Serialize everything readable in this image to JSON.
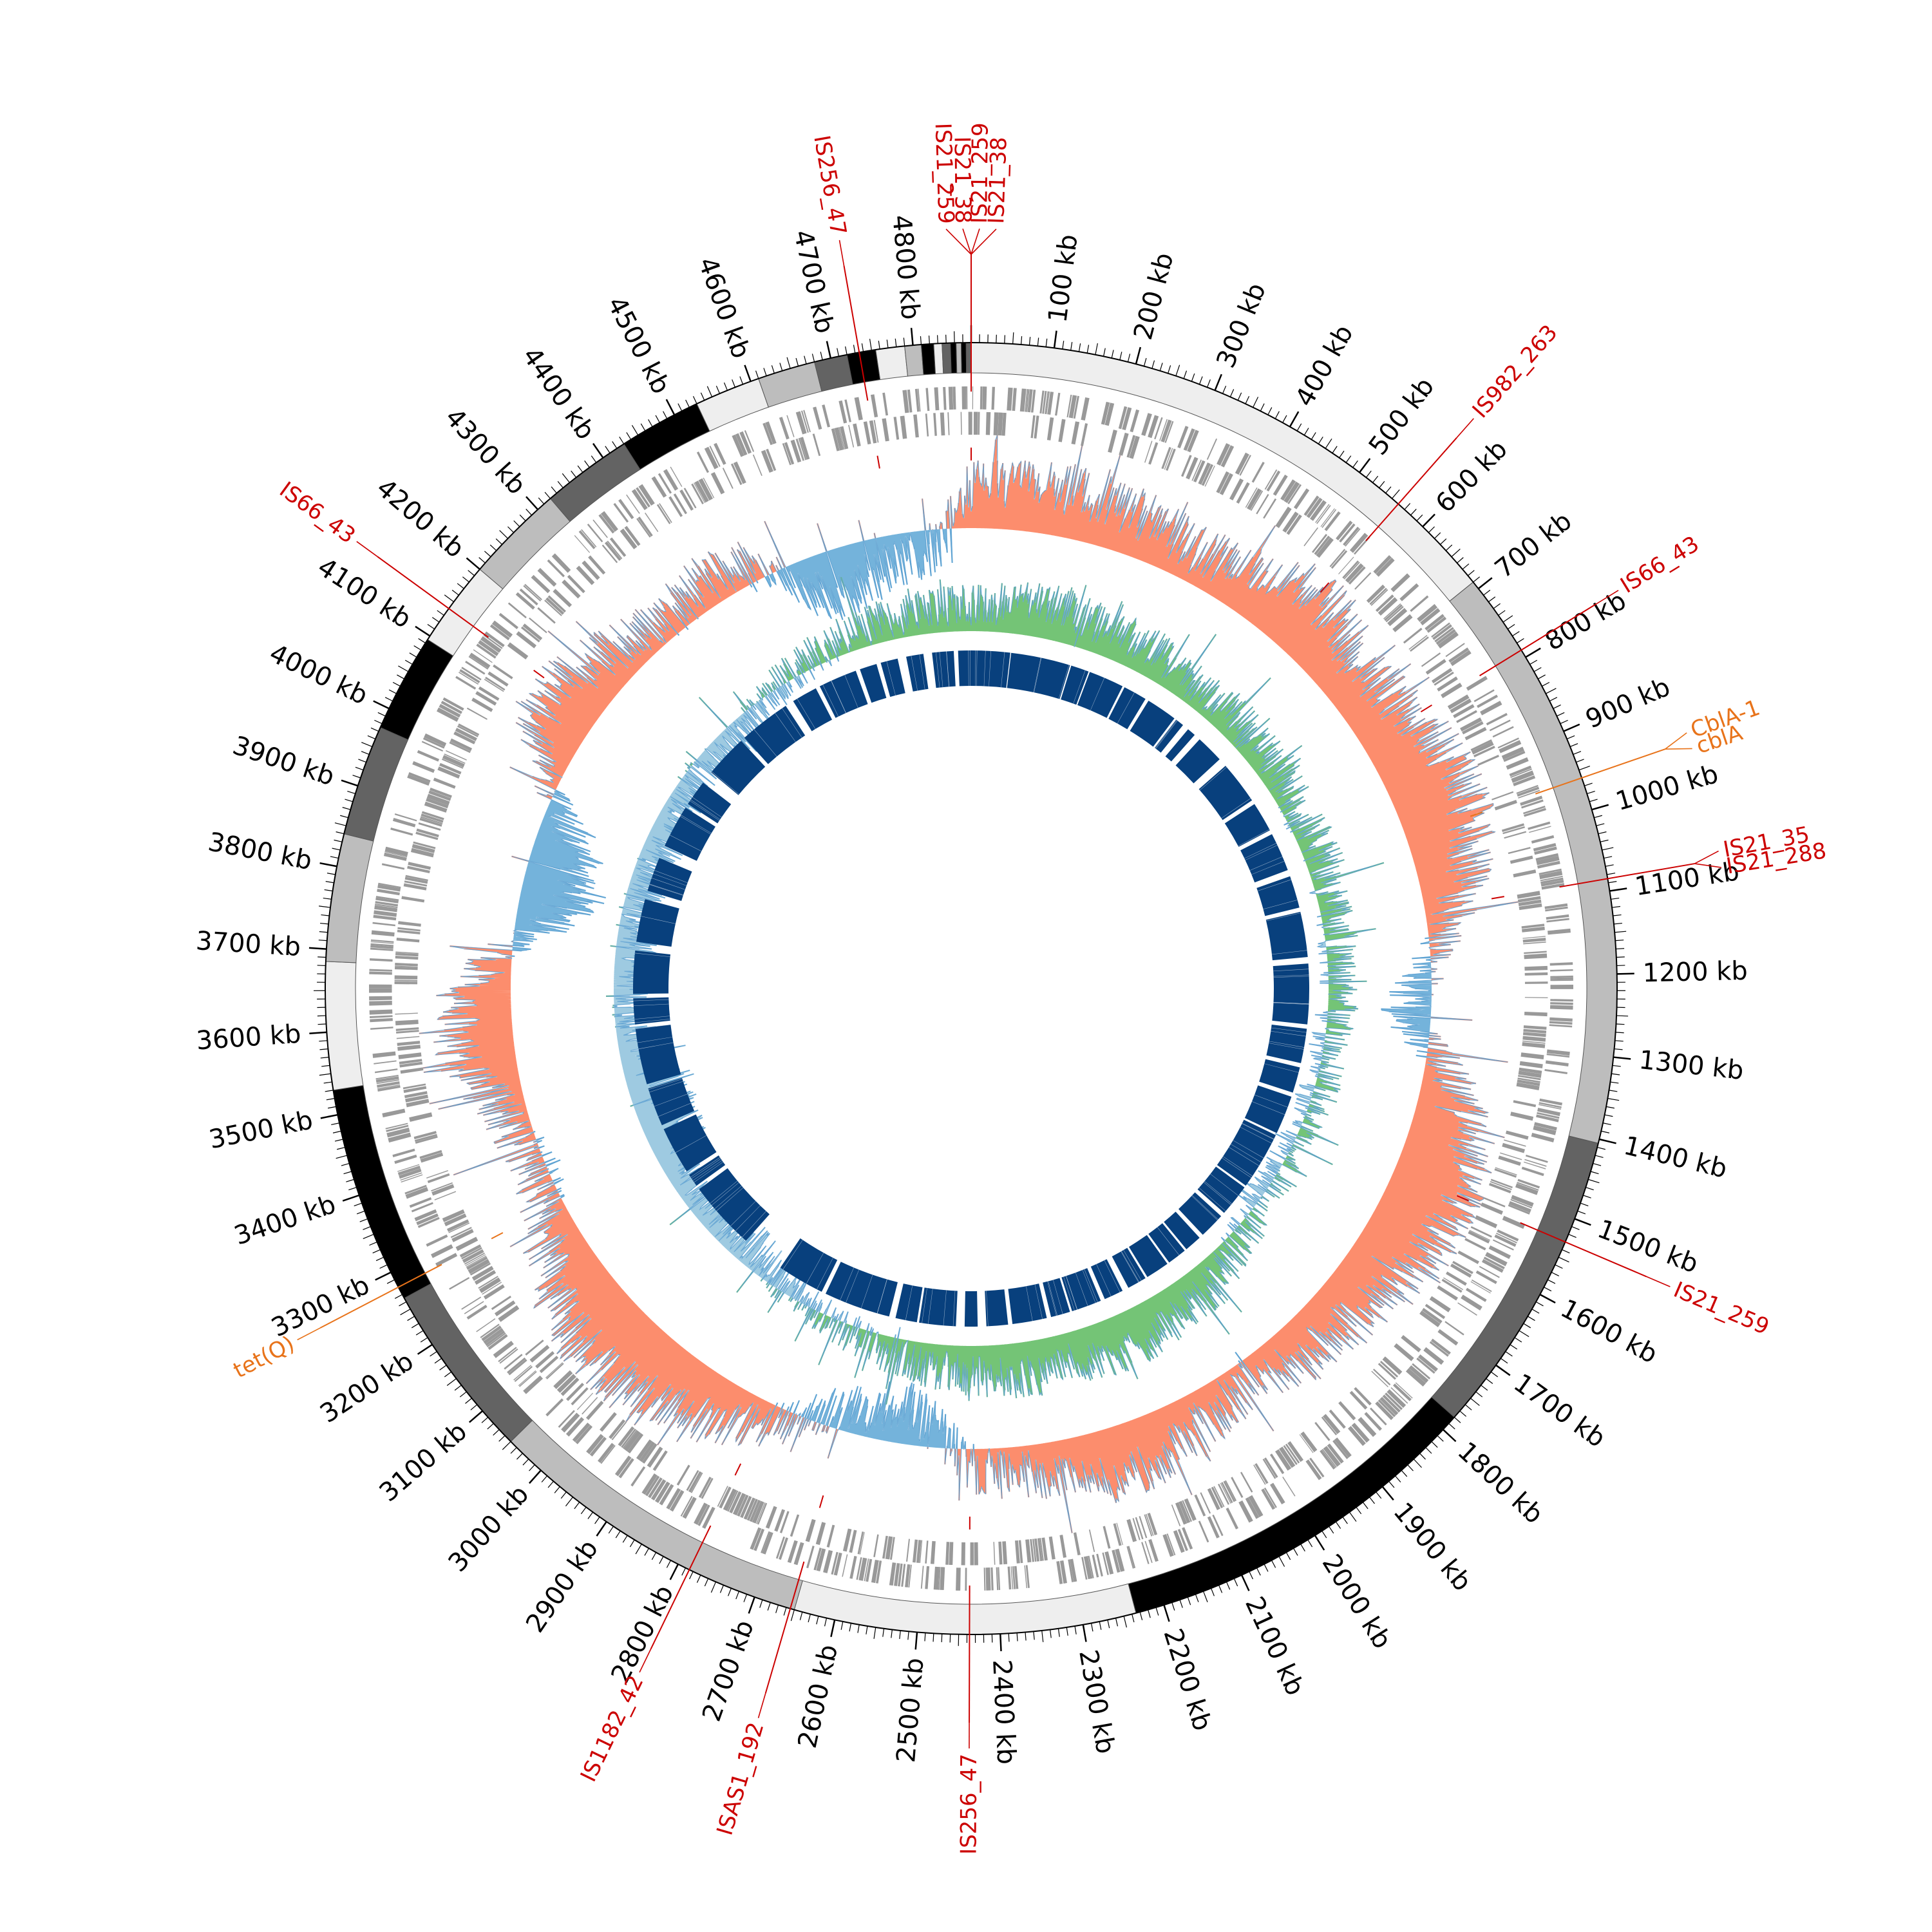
{
  "genome_map": {
    "title": "",
    "genome_length_kb": 4870,
    "tick_labels": [
      {
        "kb": 100,
        "label": "100 kb"
      },
      {
        "kb": 200,
        "label": "200 kb"
      },
      {
        "kb": 300,
        "label": "300 kb"
      },
      {
        "kb": 400,
        "label": "400 kb"
      },
      {
        "kb": 500,
        "label": "500 kb"
      },
      {
        "kb": 600,
        "label": "600 kb"
      },
      {
        "kb": 700,
        "label": "700 kb"
      },
      {
        "kb": 800,
        "label": "800 kb"
      },
      {
        "kb": 900,
        "label": "900 kb"
      },
      {
        "kb": 1000,
        "label": "1000 kb"
      },
      {
        "kb": 1100,
        "label": "1100 kb"
      },
      {
        "kb": 1200,
        "label": "1200 kb"
      },
      {
        "kb": 1300,
        "label": "1300 kb"
      },
      {
        "kb": 1400,
        "label": "1400 kb"
      },
      {
        "kb": 1500,
        "label": "1500 kb"
      },
      {
        "kb": 1600,
        "label": "1600 kb"
      },
      {
        "kb": 1700,
        "label": "1700 kb"
      },
      {
        "kb": 1800,
        "label": "1800 kb"
      },
      {
        "kb": 1900,
        "label": "1900 kb"
      },
      {
        "kb": 2000,
        "label": "2000 kb"
      },
      {
        "kb": 2100,
        "label": "2100 kb"
      },
      {
        "kb": 2200,
        "label": "2200 kb"
      },
      {
        "kb": 2300,
        "label": "2300 kb"
      },
      {
        "kb": 2400,
        "label": "2400 kb"
      },
      {
        "kb": 2500,
        "label": "2500 kb"
      },
      {
        "kb": 2600,
        "label": "2600 kb"
      },
      {
        "kb": 2700,
        "label": "2700 kb"
      },
      {
        "kb": 2800,
        "label": "2800 kb"
      },
      {
        "kb": 2900,
        "label": "2900 kb"
      },
      {
        "kb": 3000,
        "label": "3000 kb"
      },
      {
        "kb": 3100,
        "label": "3100 kb"
      },
      {
        "kb": 3200,
        "label": "3200 kb"
      },
      {
        "kb": 3300,
        "label": "3300 kb"
      },
      {
        "kb": 3400,
        "label": "3400 kb"
      },
      {
        "kb": 3500,
        "label": "3500 kb"
      },
      {
        "kb": 3600,
        "label": "3600 kb"
      },
      {
        "kb": 3700,
        "label": "3700 kb"
      },
      {
        "kb": 3800,
        "label": "3800 kb"
      },
      {
        "kb": 3900,
        "label": "3900 kb"
      },
      {
        "kb": 4000,
        "label": "4000 kb"
      },
      {
        "kb": 4100,
        "label": "4100 kb"
      },
      {
        "kb": 4200,
        "label": "4200 kb"
      },
      {
        "kb": 4300,
        "label": "4300 kb"
      },
      {
        "kb": 4400,
        "label": "4400 kb"
      },
      {
        "kb": 4500,
        "label": "4500 kb"
      },
      {
        "kb": 4600,
        "label": "4600 kb"
      },
      {
        "kb": 4700,
        "label": "4700 kb"
      },
      {
        "kb": 4800,
        "label": "4800 kb"
      }
    ],
    "contigs": [
      {
        "start": 0,
        "end": 690,
        "shade": "#eeeeee"
      },
      {
        "start": 690,
        "end": 1405,
        "shade": "#bdbdbd"
      },
      {
        "start": 1405,
        "end": 1780,
        "shade": "#636363"
      },
      {
        "start": 1780,
        "end": 2235,
        "shade": "#000000"
      },
      {
        "start": 2235,
        "end": 2650,
        "shade": "#eeeeee"
      },
      {
        "start": 2650,
        "end": 3050,
        "shade": "#bdbdbd"
      },
      {
        "start": 3050,
        "end": 3265,
        "shade": "#636363"
      },
      {
        "start": 3265,
        "end": 3530,
        "shade": "#000000"
      },
      {
        "start": 3530,
        "end": 3685,
        "shade": "#eeeeee"
      },
      {
        "start": 3685,
        "end": 3840,
        "shade": "#bdbdbd"
      },
      {
        "start": 3840,
        "end": 3975,
        "shade": "#636363"
      },
      {
        "start": 3975,
        "end": 4095,
        "shade": "#000000"
      },
      {
        "start": 4095,
        "end": 4200,
        "shade": "#eeeeee"
      },
      {
        "start": 4200,
        "end": 4320,
        "shade": "#bdbdbd"
      },
      {
        "start": 4320,
        "end": 4430,
        "shade": "#636363"
      },
      {
        "start": 4430,
        "end": 4530,
        "shade": "#000000"
      },
      {
        "start": 4530,
        "end": 4610,
        "shade": "#eeeeee"
      },
      {
        "start": 4610,
        "end": 4680,
        "shade": "#bdbdbd"
      },
      {
        "start": 4680,
        "end": 4720,
        "shade": "#636363"
      },
      {
        "start": 4720,
        "end": 4755,
        "shade": "#000000"
      },
      {
        "start": 4755,
        "end": 4790,
        "shade": "#eeeeee"
      },
      {
        "start": 4790,
        "end": 4810,
        "shade": "#bdbdbd"
      },
      {
        "start": 4810,
        "end": 4825,
        "shade": "#000000"
      },
      {
        "start": 4825,
        "end": 4835,
        "shade": "#eeeeee"
      },
      {
        "start": 4835,
        "end": 4845,
        "shade": "#636363"
      },
      {
        "start": 4845,
        "end": 4852,
        "shade": "#000000"
      },
      {
        "start": 4852,
        "end": 4858,
        "shade": "#bdbdbd"
      },
      {
        "start": 4858,
        "end": 4864,
        "shade": "#000000"
      },
      {
        "start": 4864,
        "end": 4870,
        "shade": "#636363"
      }
    ],
    "mobile_elements": [
      {
        "kb": 4870,
        "label": "IS21_259",
        "line": "#cc0000"
      },
      {
        "kb": 4870,
        "label": "IS21_38",
        "line": "#cc0000"
      },
      {
        "kb": 4870,
        "label": "IS21_259",
        "line": "#cc0000"
      },
      {
        "kb": 4870,
        "label": "IS21_38",
        "line": "#cc0000"
      },
      {
        "kb": 4735,
        "label": "IS256_47",
        "line": "#cc0000"
      },
      {
        "kb": 560,
        "label": "IS982_263",
        "line": "#cc0000"
      },
      {
        "kb": 790,
        "label": "IS66_43",
        "line": "#cc0000"
      },
      {
        "kb": 1085,
        "label": "IS21_35",
        "line": "#cc0000"
      },
      {
        "kb": 1085,
        "label": "IS21_288",
        "line": "#cc0000"
      },
      {
        "kb": 1530,
        "label": "IS21_259",
        "line": "#cc0000"
      },
      {
        "kb": 2437,
        "label": "IS256_47",
        "line": "#cc0000"
      },
      {
        "kb": 2655,
        "label": "ISAS1_192",
        "line": "#cc0000"
      },
      {
        "kb": 2785,
        "label": "IS1182_42",
        "line": "#cc0000"
      },
      {
        "kb": 4140,
        "label": "IS66_43",
        "line": "#cc0000"
      }
    ],
    "resistance_genes": [
      {
        "kb": 960,
        "label": "CblA-1",
        "color": "#e8731a"
      },
      {
        "kb": 960,
        "label": "cblA",
        "color": "#e8731a"
      },
      {
        "kb": 3280,
        "label": "tet(Q)",
        "color": "#e8731a"
      }
    ],
    "tracks": {
      "genes": {
        "color": "#999999"
      },
      "gc_content": {
        "positive": "#fc8d6d",
        "negative": "#74b3db",
        "line": "#6baed6"
      },
      "gc_skew": {
        "positive": "#74c476",
        "negative": "#9ecae1",
        "line": "#6baed6"
      },
      "blast_hits": {
        "color": "#08407d"
      }
    },
    "blast_segments": [
      [
        0,
        90
      ],
      [
        92,
        230
      ],
      [
        233,
        275
      ],
      [
        278,
        360
      ],
      [
        365,
        420
      ],
      [
        428,
        500
      ],
      [
        505,
        525
      ],
      [
        540,
        560
      ],
      [
        575,
        640
      ],
      [
        660,
        760
      ],
      [
        770,
        840
      ],
      [
        850,
        940
      ],
      [
        955,
        1030
      ],
      [
        1040,
        1145
      ],
      [
        1160,
        1300
      ],
      [
        1310,
        1390
      ],
      [
        1400,
        1460
      ],
      [
        1470,
        1560
      ],
      [
        1565,
        1700
      ],
      [
        1705,
        1780
      ],
      [
        1790,
        1850
      ],
      [
        1860,
        1900
      ],
      [
        1905,
        1950
      ],
      [
        1955,
        2010
      ],
      [
        2015,
        2060
      ],
      [
        2075,
        2120
      ],
      [
        2130,
        2200
      ],
      [
        2205,
        2250
      ],
      [
        2260,
        2340
      ],
      [
        2350,
        2400
      ],
      [
        2420,
        2450
      ],
      [
        2470,
        2555
      ],
      [
        2560,
        2610
      ],
      [
        2625,
        2780
      ],
      [
        2790,
        2900
      ],
      [
        3000,
        3160
      ],
      [
        3170,
        3200
      ],
      [
        3210,
        3320
      ],
      [
        3330,
        3420
      ],
      [
        3430,
        3560
      ],
      [
        3570,
        3630
      ],
      [
        3640,
        3740
      ],
      [
        3760,
        3860
      ],
      [
        3880,
        3960
      ],
      [
        3990,
        4090
      ],
      [
        4100,
        4160
      ],
      [
        4190,
        4290
      ],
      [
        4300,
        4420
      ],
      [
        4440,
        4500
      ],
      [
        4510,
        4600
      ],
      [
        4610,
        4650
      ],
      [
        4660,
        4700
      ],
      [
        4720,
        4760
      ],
      [
        4780,
        4830
      ],
      [
        4840,
        4870
      ]
    ],
    "gc_content_profile": [
      0.45,
      0.5,
      0.55,
      0.5,
      0.48,
      0.42,
      0.35,
      0.4,
      0.6,
      0.7,
      0.65,
      0.5,
      0.55,
      0.6,
      0.72,
      0.8,
      0.7,
      0.55,
      0.3,
      0.1,
      -0.2,
      -0.3,
      0.2,
      0.5,
      0.65,
      0.85,
      0.75,
      0.7,
      0.6,
      0.5,
      0.45,
      0.4,
      0.2,
      0.3,
      0.4,
      0.5,
      0.6,
      0.45,
      0.35,
      0.3,
      0.2,
      -0.2,
      -0.45,
      -0.3,
      -0.2,
      0.1,
      0.3,
      0.5,
      0.6,
      0.7,
      0.75,
      0.7,
      0.6,
      0.4,
      0.2,
      0.1,
      0.2,
      0.3,
      0.55,
      0.65,
      0.5,
      0.1,
      -0.4,
      -0.65,
      -0.55,
      -0.3,
      0.2,
      0.55,
      0.6,
      0.45,
      0.3,
      0.2,
      0.25,
      0.3,
      0.2,
      -0.35,
      -0.55,
      -0.4,
      -0.3,
      -0.2
    ],
    "gc_skew_profile": [
      0.35,
      0.4,
      0.45,
      0.5,
      0.42,
      0.38,
      0.4,
      0.35,
      0.3,
      0.35,
      0.3,
      0.25,
      0.3,
      0.25,
      0.2,
      0.25,
      0.2,
      0.15,
      0.2,
      0.1,
      0.12,
      0.1,
      0.05,
      0.1,
      0.05,
      0.0,
      -0.05,
      0.05,
      -0.1,
      0.1,
      0.2,
      0.35,
      0.4,
      0.45,
      0.5,
      0.55,
      0.45,
      0.4,
      0.5,
      0.45,
      0.4,
      0.35,
      0.3,
      0.2,
      0.1,
      0.05,
      -0.05,
      -0.1,
      -0.2,
      -0.3,
      -0.25,
      -0.35,
      -0.3,
      -0.4,
      -0.5,
      -0.6,
      -0.55,
      -0.5,
      -0.35,
      -0.2,
      -0.3,
      -0.35,
      -0.25,
      -0.2,
      -0.3,
      -0.25,
      -0.35,
      -0.3,
      -0.2,
      -0.25,
      -0.3,
      -0.2,
      -0.1,
      0.05,
      0.1,
      0.2,
      0.25,
      0.3,
      0.3,
      0.35
    ]
  }
}
